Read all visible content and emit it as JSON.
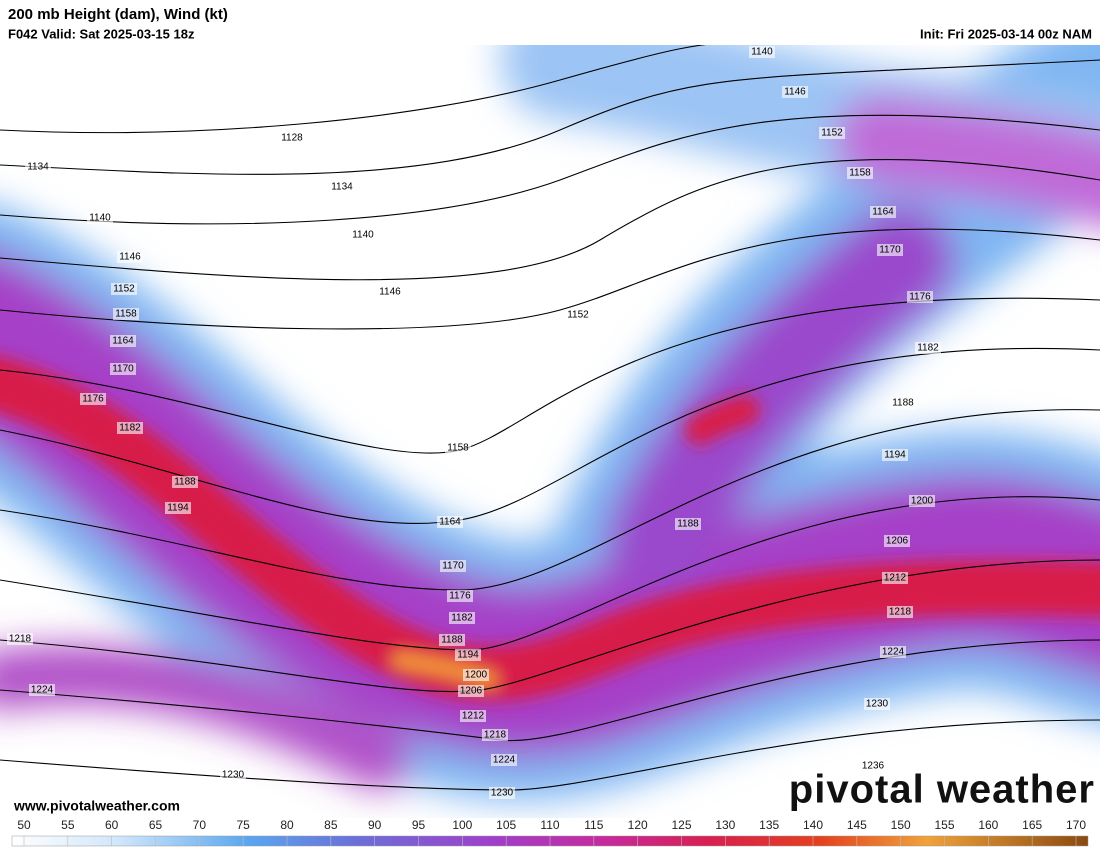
{
  "header": {
    "title": "200 mb Height (dam), Wind (kt)",
    "valid": "F042 Valid: Sat 2025-03-15 18z",
    "init": "Init: Fri 2025-03-14 00z NAM"
  },
  "map": {
    "contour_labels": [
      "1140",
      "1146",
      "1152",
      "1158",
      "1164",
      "1170",
      "1176",
      "1182",
      "1188",
      "1194",
      "1200",
      "1206",
      "1212",
      "1218",
      "1224",
      "1230",
      "1236",
      "1128",
      "1134",
      "1134",
      "1140",
      "1140",
      "1146",
      "1146",
      "1152",
      "1152",
      "1158",
      "1164",
      "1170",
      "1176",
      "1182",
      "1188",
      "1194",
      "1158",
      "1164",
      "1170",
      "1176",
      "1182",
      "1188",
      "1194",
      "1200",
      "1206",
      "1212",
      "1218",
      "1224",
      "1230",
      "1188",
      "1218",
      "1224",
      "1230"
    ]
  },
  "footer": {
    "website": "www.pivotalweather.com",
    "logo": "pivotal weather"
  },
  "colorbar": {
    "range": [
      50,
      170
    ],
    "ticks": [
      50,
      55,
      60,
      65,
      70,
      75,
      80,
      85,
      90,
      95,
      100,
      105,
      110,
      115,
      120,
      125,
      130,
      135,
      140,
      145,
      150,
      155,
      160,
      165,
      170
    ]
  }
}
